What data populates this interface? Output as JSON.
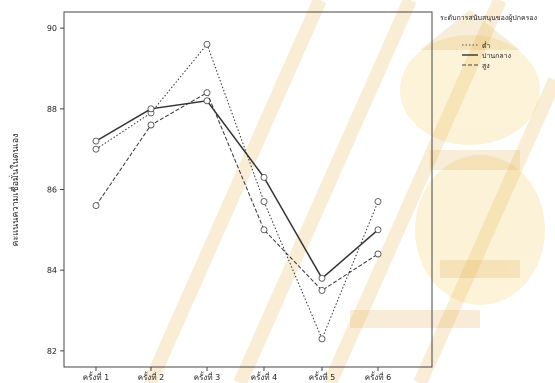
{
  "chart_data": {
    "type": "line",
    "title": "",
    "xlabel": "",
    "ylabel": "คะแนนความเชื่อมั่นในตนเอง",
    "categories": [
      "ครั้งที่ 1",
      "ครั้งที่ 2",
      "ครั้งที่ 3",
      "ครั้งที่ 4",
      "ครั้งที่ 5",
      "ครั้งที่ 6"
    ],
    "ylim": [
      81.6,
      90.4
    ],
    "yticks": [
      82,
      84,
      86,
      88,
      90
    ],
    "grid": false,
    "legend": {
      "placement": "right",
      "title": "ระดับการสนับสนุนของผู้ปกครอง",
      "entries": [
        "ต่ำ",
        "ปานกลาง",
        "สูง"
      ]
    },
    "series": [
      {
        "name": "ต่ำ",
        "style": "dotted",
        "values": [
          87.0,
          87.9,
          89.6,
          85.7,
          82.3,
          85.7
        ]
      },
      {
        "name": "ปานกลาง",
        "style": "solid",
        "values": [
          87.2,
          88.0,
          88.2,
          86.3,
          83.8,
          85.0
        ]
      },
      {
        "name": "สูง",
        "style": "dashed",
        "values": [
          85.6,
          87.6,
          88.4,
          85.0,
          83.5,
          84.4
        ]
      }
    ],
    "colors": {
      "line": "#333333",
      "marker": "#555555",
      "frame": "#444444",
      "watermark": "#f2c94c"
    }
  }
}
